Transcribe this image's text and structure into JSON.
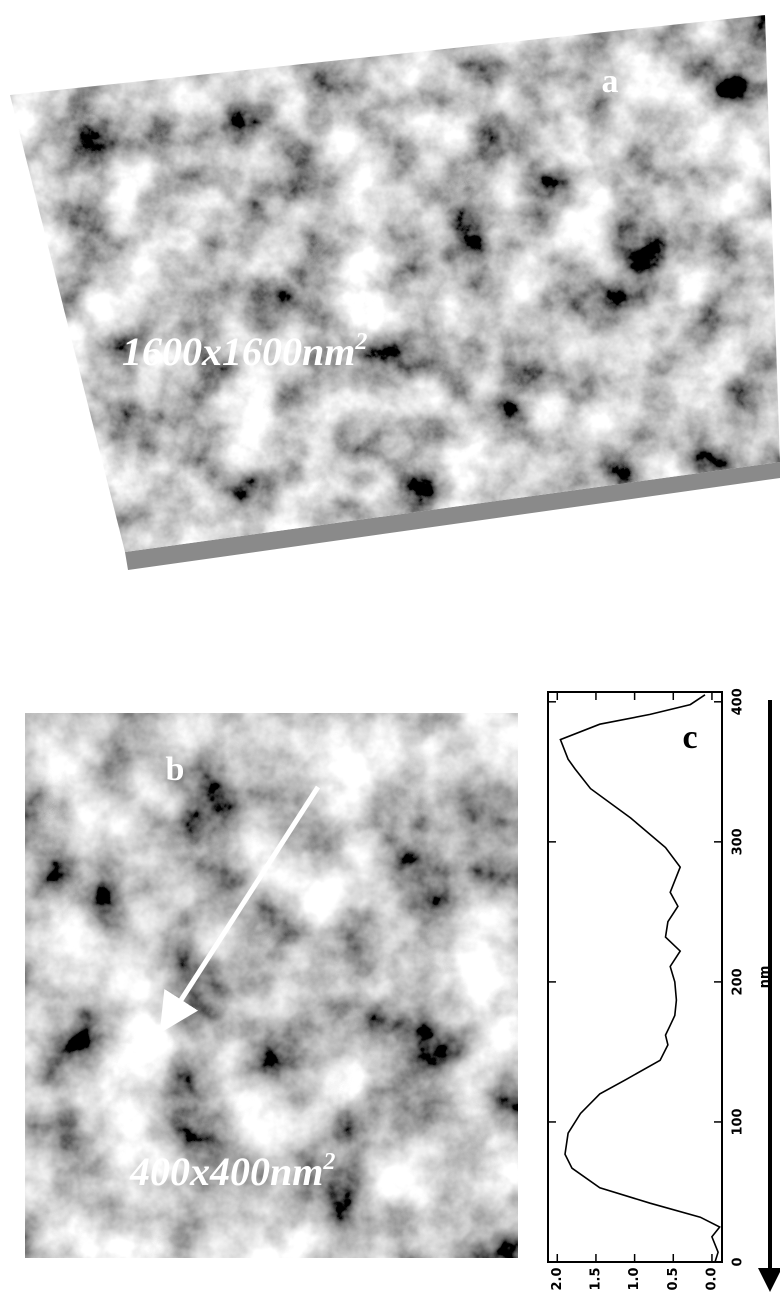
{
  "panels": {
    "a": {
      "label": "a",
      "scale": "1600x1600nm",
      "scale_exponent": "2"
    },
    "b": {
      "label": "b",
      "scale": "400x400nm",
      "scale_exponent": "2"
    }
  },
  "chart_data": {
    "type": "line",
    "label": "c",
    "x_label": "nm",
    "x": [
      0,
      7,
      18,
      25,
      32,
      42,
      53,
      67,
      77,
      92,
      106,
      120,
      130,
      144,
      155,
      162,
      169,
      176,
      187,
      200,
      211,
      222,
      232,
      243,
      254,
      264,
      282,
      296,
      317,
      338,
      352,
      359,
      373,
      384,
      391,
      398,
      405
    ],
    "series": [
      {
        "color": "#000000",
        "values": [
          -0.04,
          -0.08,
          0,
          -0.1,
          0.15,
          0.8,
          1.45,
          1.81,
          1.9,
          1.86,
          1.7,
          1.45,
          1.12,
          0.67,
          0.57,
          0.6,
          0.54,
          0.48,
          0.46,
          0.48,
          0.54,
          0.41,
          0.6,
          0.57,
          0.44,
          0.54,
          0.41,
          0.6,
          1.05,
          1.57,
          1.77,
          1.86,
          1.96,
          1.45,
          0.8,
          0.28,
          0.09
        ]
      }
    ],
    "xlim": [
      0,
      407
    ],
    "xticks": [
      0,
      100,
      200,
      300,
      400
    ],
    "ylim": [
      -0.13,
      2.12
    ],
    "yticks": [
      {
        "value": 2,
        "label": "2.0"
      },
      1.5,
      {
        "value": 1,
        "label": "1.0"
      },
      0.5,
      {
        "value": 0,
        "label": "0.0"
      }
    ]
  }
}
